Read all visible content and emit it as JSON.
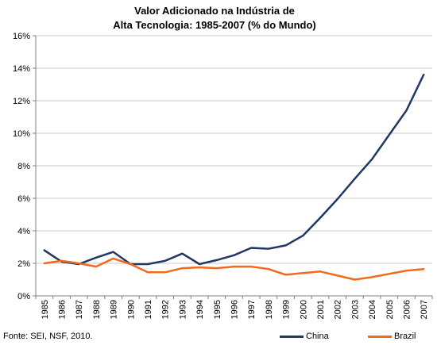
{
  "chart_data": {
    "type": "line",
    "title_line1": "Valor Adicionado na Indústria de",
    "title_line2": "Alta Tecnologia: 1985-2007 (% do Mundo)",
    "categories": [
      "1985",
      "1986",
      "1987",
      "1988",
      "1989",
      "1990",
      "1991",
      "1992",
      "1993",
      "1994",
      "1995",
      "1996",
      "1997",
      "1998",
      "1999",
      "2000",
      "2001",
      "2002",
      "2003",
      "2004",
      "2005",
      "2006",
      "2007"
    ],
    "ylim": [
      0,
      16
    ],
    "yticks": [
      0,
      2,
      4,
      6,
      8,
      10,
      12,
      14,
      16
    ],
    "ytick_labels": [
      "0%",
      "2%",
      "4%",
      "6%",
      "8%",
      "10%",
      "12%",
      "14%",
      "16%"
    ],
    "grid": "horizontal",
    "legend_position": "bottom-right",
    "series": [
      {
        "name": "China",
        "color": "#1f3864",
        "values": [
          2.8,
          2.1,
          1.95,
          2.35,
          2.7,
          1.95,
          1.95,
          2.15,
          2.6,
          1.95,
          2.2,
          2.5,
          2.95,
          2.9,
          3.1,
          3.7,
          4.8,
          5.95,
          7.2,
          8.4,
          9.9,
          11.4,
          13.6
        ]
      },
      {
        "name": "Brazil",
        "color": "#f26b1d",
        "values": [
          2.0,
          2.15,
          2.0,
          1.8,
          2.3,
          1.95,
          1.45,
          1.45,
          1.7,
          1.75,
          1.7,
          1.8,
          1.8,
          1.65,
          1.3,
          1.4,
          1.5,
          1.25,
          1.0,
          1.15,
          1.35,
          1.55,
          1.65
        ]
      }
    ]
  },
  "source": "Fonte: SEI, NSF, 2010."
}
